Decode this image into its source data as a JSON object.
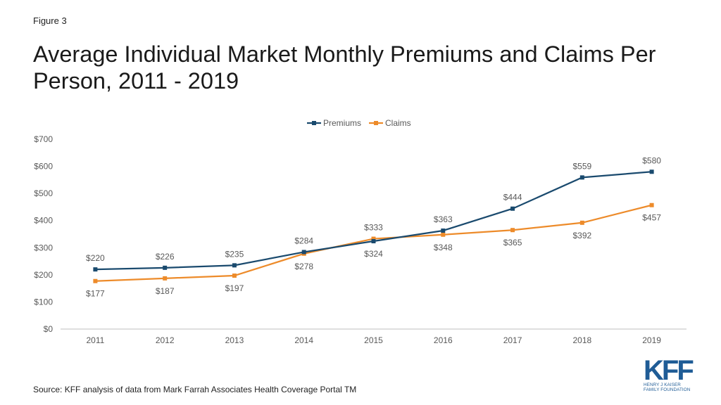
{
  "figure_label": "Figure 3",
  "title": "Average Individual Market Monthly Premiums and Claims Per Person, 2011 - 2019",
  "source": "Source: KFF analysis of data from Mark Farrah Associates Health Coverage Portal TM",
  "logo": {
    "mark": "KFF",
    "line1": "HENRY J KAISER",
    "line2": "FAMILY FOUNDATION"
  },
  "colors": {
    "premiums": "#1a4a6e",
    "claims": "#ed8b2a",
    "grid": "#d9d9d9",
    "axis": "#bfbfbf",
    "tick": "#595959"
  },
  "chart_data": {
    "type": "line",
    "categories": [
      "2011",
      "2012",
      "2013",
      "2014",
      "2015",
      "2016",
      "2017",
      "2018",
      "2019"
    ],
    "series": [
      {
        "name": "Premiums",
        "values": [
          220,
          226,
          235,
          284,
          324,
          363,
          444,
          559,
          580
        ],
        "labels": [
          "$220",
          "$226",
          "$235",
          "$284",
          "$324",
          "$363",
          "$444",
          "$559",
          "$580"
        ]
      },
      {
        "name": "Claims",
        "values": [
          177,
          187,
          197,
          278,
          333,
          348,
          365,
          392,
          457
        ],
        "labels": [
          "$177",
          "$187",
          "$197",
          "$278",
          "$333",
          "$348",
          "$365",
          "$392",
          "$457"
        ]
      }
    ],
    "ylim": [
      0,
      700
    ],
    "yticks": [
      0,
      100,
      200,
      300,
      400,
      500,
      600,
      700
    ],
    "ytick_labels": [
      "$0",
      "$100",
      "$200",
      "$300",
      "$400",
      "$500",
      "$600",
      "$700"
    ],
    "legend_position": "top-center",
    "grid": false
  }
}
